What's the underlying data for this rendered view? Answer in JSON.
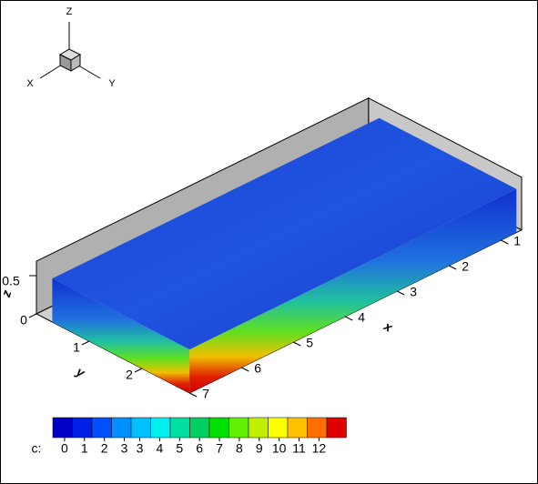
{
  "chart_data": {
    "type": "contour3d",
    "axis_triad": {
      "z": "Z",
      "x": "X",
      "y": "Y"
    },
    "xlabel": "x",
    "ylabel": "y",
    "zlabel": "z",
    "xlim": [
      0.6,
      7
    ],
    "ylim": [
      0,
      2.9
    ],
    "zlim": [
      0,
      0.6
    ],
    "xticks": [
      1,
      2,
      3,
      4,
      5,
      6,
      7
    ],
    "yticks": [
      0,
      1,
      2
    ],
    "zticks": [
      0.5
    ],
    "colorbar": {
      "label": "c:",
      "ticks": [
        {
          "value": 0,
          "label": "0"
        },
        {
          "value": 0.9,
          "label": "1"
        },
        {
          "value": 1.8,
          "label": "2"
        },
        {
          "value": 2.7,
          "label": "3"
        },
        {
          "value": 3.4,
          "label": "3"
        },
        {
          "value": 4.3,
          "label": "4"
        },
        {
          "value": 5.2,
          "label": "5"
        },
        {
          "value": 6.1,
          "label": "6"
        },
        {
          "value": 7,
          "label": "7"
        },
        {
          "value": 7.9,
          "label": "8"
        },
        {
          "value": 8.8,
          "label": "9"
        },
        {
          "value": 9.7,
          "label": "10"
        },
        {
          "value": 10.6,
          "label": "11"
        },
        {
          "value": 11.5,
          "label": "12"
        }
      ],
      "colors": [
        "#0000c8",
        "#0020e8",
        "#0050ff",
        "#0090ff",
        "#00c0ff",
        "#00f0f0",
        "#00e0a0",
        "#00d060",
        "#00e000",
        "#60f000",
        "#c0f000",
        "#ffff00",
        "#ffc000",
        "#ff7000",
        "#e00000"
      ]
    }
  }
}
